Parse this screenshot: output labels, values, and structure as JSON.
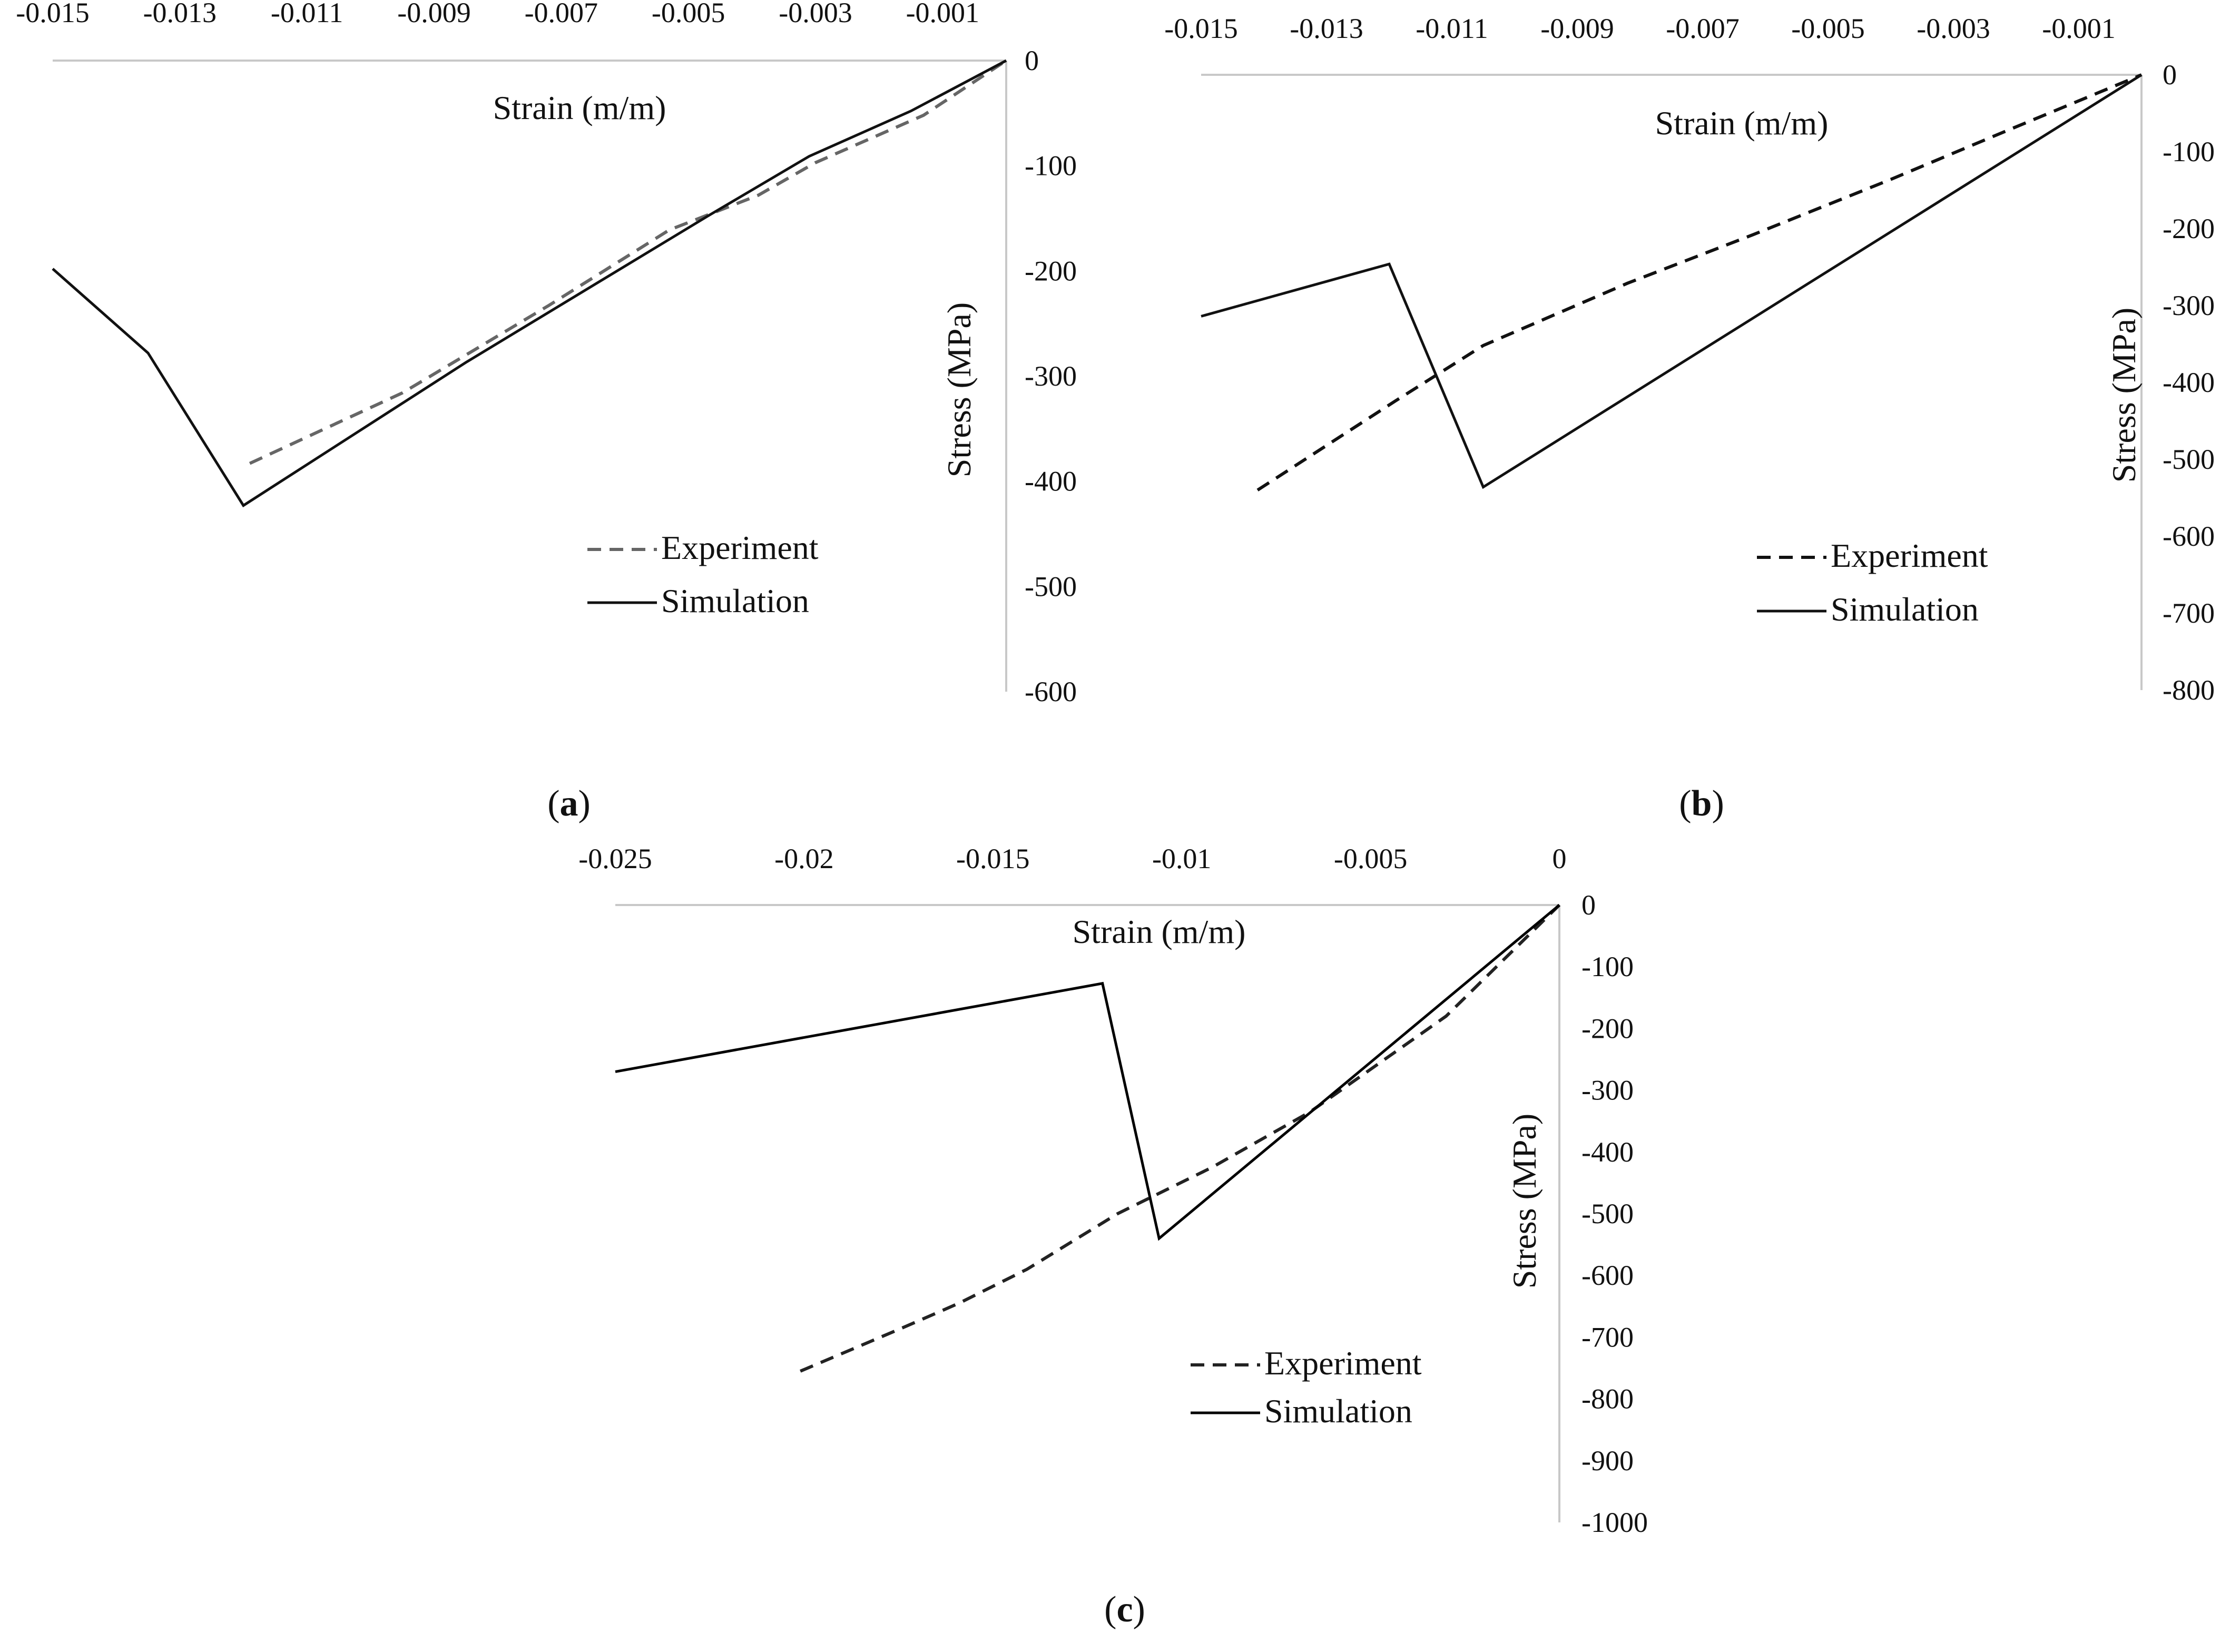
{
  "chart_data": [
    {
      "type": "line",
      "panel_label": "a",
      "xlabel": "Strain (m/m)",
      "ylabel": "Stress (MPa)",
      "xlim": [
        -0.015,
        0
      ],
      "ylim": [
        -600,
        0
      ],
      "x_ticks": [
        -0.015,
        -0.013,
        -0.011,
        -0.009,
        -0.007,
        -0.005,
        -0.003,
        -0.001
      ],
      "x_tick_labels": [
        "-0.015",
        "-0.013",
        "-0.011",
        "-0.009",
        "-0.007",
        "-0.005",
        "-0.003",
        "-0.001"
      ],
      "y_ticks": [
        0,
        -100,
        -200,
        -300,
        -400,
        -500,
        -600
      ],
      "y_tick_labels": [
        "0",
        "-100",
        "-200",
        "-300",
        "-400",
        "-500",
        "-600"
      ],
      "x_axis_position": "top",
      "y_axis_position": "right",
      "grid": false,
      "legend_position": "bottom-right",
      "series": [
        {
          "name": "Experiment",
          "style": "dashed",
          "color": "#666666",
          "x": [
            -0.0119,
            -0.0095,
            -0.0072,
            -0.0053,
            -0.0039,
            -0.003,
            -0.0013,
            0
          ],
          "y": [
            -383,
            -316,
            -233,
            -161,
            -128,
            -97,
            -52,
            0
          ]
        },
        {
          "name": "Simulation",
          "style": "solid",
          "color": "#111111",
          "x": [
            -0.015,
            -0.0135,
            -0.012,
            -0.0085,
            -0.0047,
            -0.0031,
            -0.0015,
            0
          ],
          "y": [
            -198,
            -278,
            -423,
            -287,
            -148,
            -91,
            -48,
            0
          ]
        }
      ]
    },
    {
      "type": "line",
      "panel_label": "b",
      "xlabel": "Strain (m/m)",
      "ylabel": "Stress (MPa)",
      "xlim": [
        -0.015,
        0
      ],
      "ylim": [
        -800,
        0
      ],
      "x_ticks": [
        -0.015,
        -0.013,
        -0.011,
        -0.009,
        -0.007,
        -0.005,
        -0.003,
        -0.001
      ],
      "x_tick_labels": [
        "-0.015",
        "-0.013",
        "-0.011",
        "-0.009",
        "-0.007",
        "-0.005",
        "-0.003",
        "-0.001"
      ],
      "y_ticks": [
        0,
        -100,
        -200,
        -300,
        -400,
        -500,
        -600,
        -700,
        -800
      ],
      "y_tick_labels": [
        "0",
        "-100",
        "-200",
        "-300",
        "-400",
        "-500",
        "-600",
        "-700",
        "-800"
      ],
      "x_axis_position": "top",
      "y_axis_position": "right",
      "grid": false,
      "legend_position": "bottom-right",
      "series": [
        {
          "name": "Experiment",
          "style": "dashed",
          "color": "#111111",
          "x": [
            -0.0141,
            -0.0119,
            -0.0105,
            -0.0082,
            -0.0062,
            -0.004,
            -0.0021,
            0
          ],
          "y": [
            -540,
            -424,
            -352,
            -271,
            -208,
            -136,
            -71,
            0
          ]
        },
        {
          "name": "Simulation",
          "style": "solid",
          "color": "#111111",
          "x": [
            -0.015,
            -0.012,
            -0.0105,
            0
          ],
          "y": [
            -314,
            -246,
            -536,
            0
          ]
        }
      ]
    },
    {
      "type": "line",
      "panel_label": "c",
      "xlabel": "Strain (m/m)",
      "ylabel": "Stress (MPa)",
      "xlim": [
        -0.025,
        0
      ],
      "ylim": [
        -1000,
        0
      ],
      "x_ticks": [
        -0.025,
        -0.02,
        -0.015,
        -0.01,
        -0.005,
        0
      ],
      "x_tick_labels": [
        "-0.025",
        "-0.02",
        "-0.015",
        "-0.01",
        "-0.005",
        "0"
      ],
      "y_ticks": [
        0,
        -100,
        -200,
        -300,
        -400,
        -500,
        -600,
        -700,
        -800,
        -900,
        -1000
      ],
      "y_tick_labels": [
        "0",
        "-100",
        "-200",
        "-300",
        "-400",
        "-500",
        "-600",
        "-700",
        "-800",
        "-900",
        "-1000"
      ],
      "x_axis_position": "top",
      "y_axis_position": "right",
      "grid": false,
      "legend_position": "bottom-right",
      "series": [
        {
          "name": "Experiment",
          "style": "dashed",
          "color": "#222222",
          "x": [
            -0.0201,
            -0.0174,
            -0.0159,
            -0.0141,
            -0.0117,
            -0.0092,
            -0.0066,
            -0.003,
            0
          ],
          "y": [
            -755,
            -685,
            -645,
            -590,
            -500,
            -425,
            -335,
            -180,
            0
          ]
        },
        {
          "name": "Simulation",
          "style": "solid",
          "color": "#000000",
          "x": [
            -0.025,
            -0.0121,
            -0.0106,
            0
          ],
          "y": [
            -270,
            -127,
            -540,
            0
          ]
        }
      ]
    }
  ]
}
